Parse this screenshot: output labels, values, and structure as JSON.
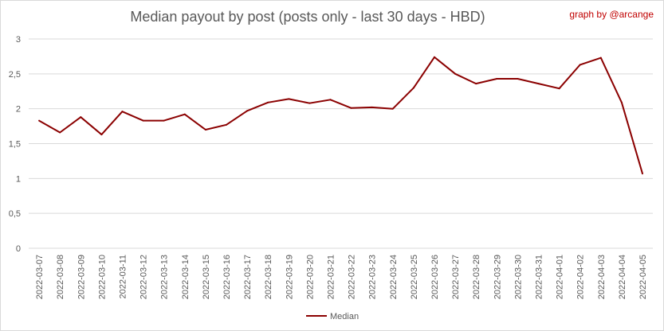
{
  "header": {
    "title": "Median payout by post (posts only - last 30 days - HBD)",
    "credit": "graph by @arcange"
  },
  "colors": {
    "line": "#8b0000",
    "grid": "#d9d9d9",
    "text": "#595959",
    "credit": "#c00000"
  },
  "chart_data": {
    "type": "line",
    "title": "Median payout by post (posts only - last 30 days - HBD)",
    "categories": [
      "2022-03-07",
      "2022-03-08",
      "2022-03-09",
      "2022-03-10",
      "2022-03-11",
      "2022-03-12",
      "2022-03-13",
      "2022-03-14",
      "2022-03-15",
      "2022-03-16",
      "2022-03-17",
      "2022-03-18",
      "2022-03-19",
      "2022-03-20",
      "2022-03-21",
      "2022-03-22",
      "2022-03-23",
      "2022-03-24",
      "2022-03-25",
      "2022-03-26",
      "2022-03-27",
      "2022-03-28",
      "2022-03-29",
      "2022-03-30",
      "2022-03-31",
      "2022-04-01",
      "2022-04-02",
      "2022-04-03",
      "2022-04-04",
      "2022-04-05"
    ],
    "series": [
      {
        "name": "Median",
        "values": [
          1.83,
          1.66,
          1.88,
          1.63,
          1.96,
          1.83,
          1.83,
          1.92,
          1.7,
          1.77,
          1.97,
          2.09,
          2.14,
          2.08,
          2.13,
          2.01,
          2.02,
          2.0,
          2.3,
          2.74,
          2.5,
          2.36,
          2.43,
          2.43,
          2.36,
          2.29,
          2.63,
          2.73,
          2.09,
          1.07
        ]
      }
    ],
    "ylim": [
      0,
      3
    ],
    "yticks": [
      "0",
      "0,5",
      "1",
      "1,5",
      "2",
      "2,5",
      "3"
    ],
    "grid": true,
    "legend": "bottom"
  }
}
